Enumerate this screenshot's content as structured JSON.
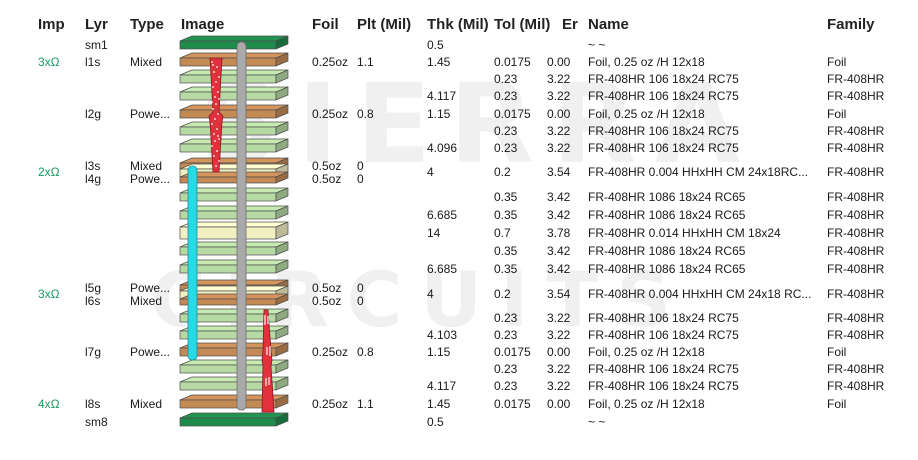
{
  "watermark": [
    "SIERRA",
    "CIRCUITS"
  ],
  "headers": {
    "imp": "Imp",
    "lyr": "Lyr",
    "type": "Type",
    "image": "Image",
    "foil": "Foil",
    "plt": "Plt (Mil)",
    "thk": "Thk (Mil)",
    "tol": "Tol (Mil)",
    "er": "Er",
    "name": "Name",
    "family": "Family"
  },
  "colors": {
    "mask": "#1e8a4c",
    "copper": "#c48a56",
    "prepreg": "#b7d9a4",
    "core": "#f2efc3",
    "impedance": "#1a9a63",
    "cyan_via": "#29d9e6",
    "grey_via": "#a9a9a9",
    "red_via": "#e0313d"
  },
  "rows": [
    {
      "imp": "",
      "lyr": "sm1",
      "type": "",
      "foil": "",
      "plt": "",
      "thk": "0.5",
      "tol": "",
      "er": "",
      "name": "~ ~",
      "family": "",
      "kind": "mask"
    },
    {
      "imp": "3xΩ",
      "lyr": "l1s",
      "type": "Mixed",
      "foil": "0.25oz",
      "plt": "1.1",
      "thk": "1.45",
      "tol": "0.0175",
      "er": "0.00",
      "name": "Foil, 0.25 oz /H 12x18",
      "family": "Foil",
      "kind": "copper"
    },
    {
      "imp": "",
      "lyr": "",
      "type": "",
      "foil": "",
      "plt": "",
      "thk": "",
      "tol": "0.23",
      "er": "3.22",
      "name": "FR-408HR 106 18x24 RC75",
      "family": "FR-408HR",
      "kind": "prepreg"
    },
    {
      "imp": "",
      "lyr": "",
      "type": "",
      "foil": "",
      "plt": "",
      "thk": "4.117",
      "tol": "0.23",
      "er": "3.22",
      "name": "FR-408HR 106 18x24 RC75",
      "family": "FR-408HR",
      "kind": "prepreg"
    },
    {
      "imp": "",
      "lyr": "l2g",
      "type": "Powe...",
      "foil": "0.25oz",
      "plt": "0.8",
      "thk": "1.15",
      "tol": "0.0175",
      "er": "0.00",
      "name": "Foil, 0.25 oz /H 12x18",
      "family": "Foil",
      "kind": "copper"
    },
    {
      "imp": "",
      "lyr": "",
      "type": "",
      "foil": "",
      "plt": "",
      "thk": "",
      "tol": "0.23",
      "er": "3.22",
      "name": "FR-408HR 106 18x24 RC75",
      "family": "FR-408HR",
      "kind": "prepreg"
    },
    {
      "imp": "",
      "lyr": "",
      "type": "",
      "foil": "",
      "plt": "",
      "thk": "4.096",
      "tol": "0.23",
      "er": "3.22",
      "name": "FR-408HR 106 18x24 RC75",
      "family": "FR-408HR",
      "kind": "prepreg"
    },
    {
      "imp": "2xΩ",
      "lyr": "l3s\nl4g",
      "type": "Mixed\nPowe...",
      "foil": "0.5oz\n0.5oz",
      "plt": "0\n0",
      "thk": "4",
      "tol": "0.2",
      "er": "3.54",
      "name": "FR-408HR 0.004 HHxHH CM 24x18RC...",
      "family": "FR-408HR",
      "kind": "core"
    },
    {
      "imp": "",
      "lyr": "",
      "type": "",
      "foil": "",
      "plt": "",
      "thk": "",
      "tol": "0.35",
      "er": "3.42",
      "name": "FR-408HR 1086 18x24 RC65",
      "family": "FR-408HR",
      "kind": "prepreg"
    },
    {
      "imp": "",
      "lyr": "",
      "type": "",
      "foil": "",
      "plt": "",
      "thk": "6.685",
      "tol": "0.35",
      "er": "3.42",
      "name": "FR-408HR 1086 18x24 RC65",
      "family": "FR-408HR",
      "kind": "prepreg"
    },
    {
      "imp": "",
      "lyr": "",
      "type": "",
      "foil": "",
      "plt": "",
      "thk": "14",
      "tol": "0.7",
      "er": "3.78",
      "name": "FR-408HR 0.014 HHxHH CM 18x24",
      "family": "FR-408HR",
      "kind": "core2"
    },
    {
      "imp": "",
      "lyr": "",
      "type": "",
      "foil": "",
      "plt": "",
      "thk": "",
      "tol": "0.35",
      "er": "3.42",
      "name": "FR-408HR 1086 18x24 RC65",
      "family": "FR-408HR",
      "kind": "prepreg"
    },
    {
      "imp": "",
      "lyr": "",
      "type": "",
      "foil": "",
      "plt": "",
      "thk": "6.685",
      "tol": "0.35",
      "er": "3.42",
      "name": "FR-408HR 1086 18x24 RC65",
      "family": "FR-408HR",
      "kind": "prepreg"
    },
    {
      "imp": "3xΩ",
      "lyr": "l5g\nl6s",
      "type": "Powe...\nMixed",
      "foil": "0.5oz\n0.5oz",
      "plt": "0\n0",
      "thk": "4",
      "tol": "0.2",
      "er": "3.54",
      "name": "FR-408HR 0.004 HHxHH CM 24x18 RC...",
      "family": "FR-408HR",
      "kind": "core"
    },
    {
      "imp": "",
      "lyr": "",
      "type": "",
      "foil": "",
      "plt": "",
      "thk": "",
      "tol": "0.23",
      "er": "3.22",
      "name": "FR-408HR 106 18x24 RC75",
      "family": "FR-408HR",
      "kind": "prepreg"
    },
    {
      "imp": "",
      "lyr": "",
      "type": "",
      "foil": "",
      "plt": "",
      "thk": "4.103",
      "tol": "0.23",
      "er": "3.22",
      "name": "FR-408HR 106 18x24 RC75",
      "family": "FR-408HR",
      "kind": "prepreg"
    },
    {
      "imp": "",
      "lyr": "l7g",
      "type": "Powe...",
      "foil": "0.25oz",
      "plt": "0.8",
      "thk": "1.15",
      "tol": "0.0175",
      "er": "0.00",
      "name": "Foil, 0.25 oz /H 12x18",
      "family": "Foil",
      "kind": "copper"
    },
    {
      "imp": "",
      "lyr": "",
      "type": "",
      "foil": "",
      "plt": "",
      "thk": "",
      "tol": "0.23",
      "er": "3.22",
      "name": "FR-408HR 106 18x24 RC75",
      "family": "FR-408HR",
      "kind": "prepreg"
    },
    {
      "imp": "",
      "lyr": "",
      "type": "",
      "foil": "",
      "plt": "",
      "thk": "4.117",
      "tol": "0.23",
      "er": "3.22",
      "name": "FR-408HR 106 18x24 RC75",
      "family": "FR-408HR",
      "kind": "prepreg"
    },
    {
      "imp": "4xΩ",
      "lyr": "l8s",
      "type": "Mixed",
      "foil": "0.25oz",
      "plt": "1.1",
      "thk": "1.45",
      "tol": "0.0175",
      "er": "0.00",
      "name": "Foil, 0.25 oz /H 12x18",
      "family": "Foil",
      "kind": "copper"
    },
    {
      "imp": "",
      "lyr": "sm8",
      "type": "",
      "foil": "",
      "plt": "",
      "thk": "0.5",
      "tol": "",
      "er": "",
      "name": "~ ~",
      "family": "",
      "kind": "mask"
    }
  ]
}
